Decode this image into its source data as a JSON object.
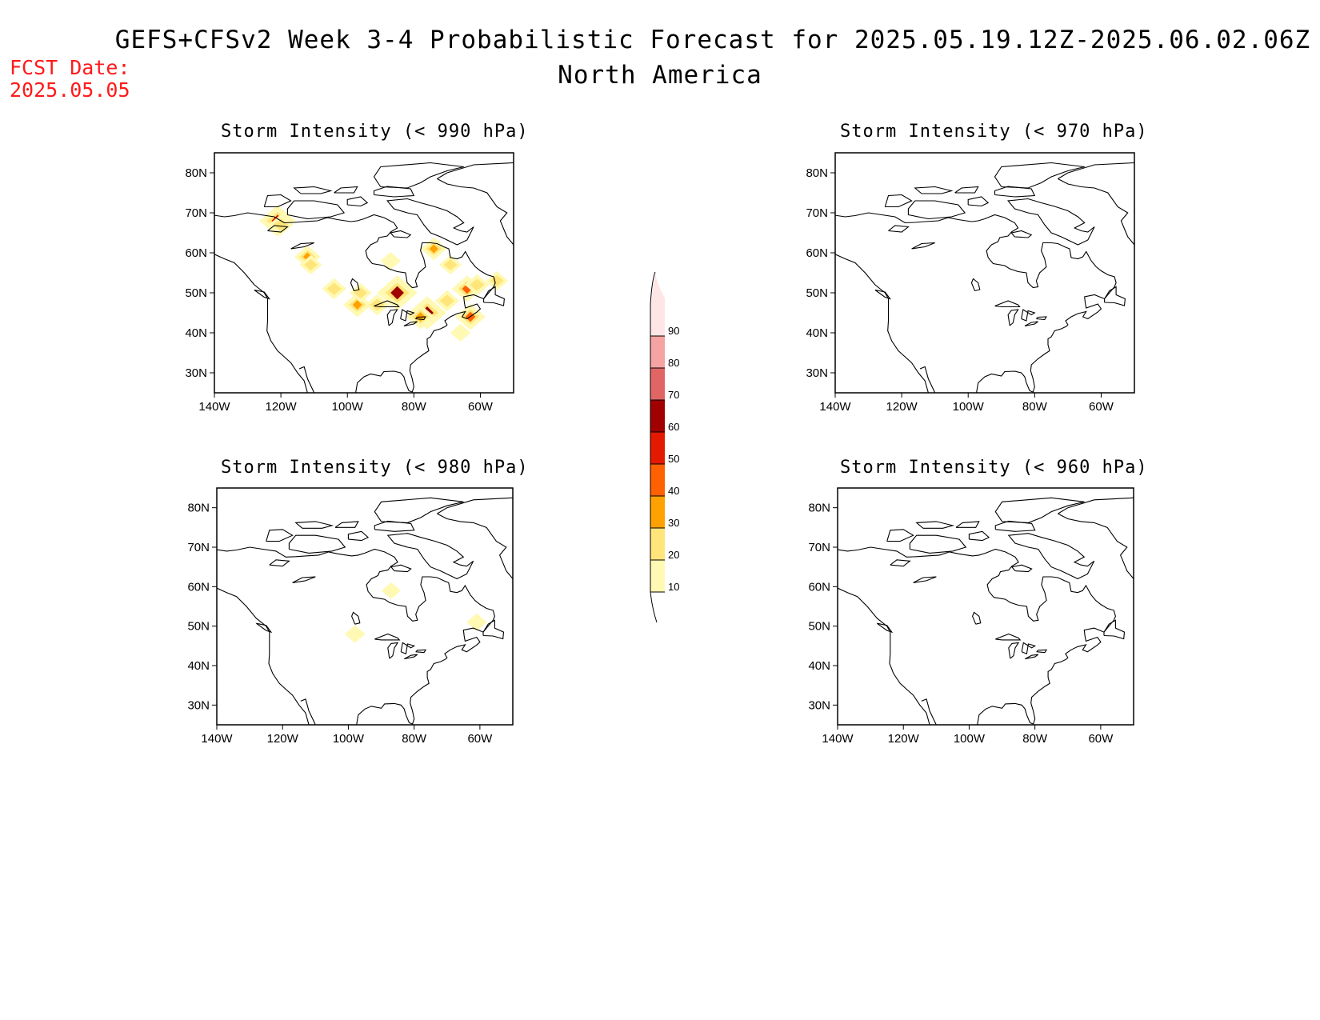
{
  "title": {
    "line1": "GEFS+CFSv2 Week 3-4 Probabilistic Forecast for 2025.05.19.12Z-2025.06.02.06Z",
    "line2": "North America"
  },
  "fcst": {
    "label": "FCST Date:",
    "date": "2025.05.05"
  },
  "axes": {
    "lon_ticks": [
      "140W",
      "120W",
      "100W",
      "80W",
      "60W"
    ],
    "lon_values": [
      -140,
      -120,
      -100,
      -80,
      -60
    ],
    "lat_ticks": [
      "30N",
      "40N",
      "50N",
      "60N",
      "70N",
      "80N"
    ],
    "lat_values": [
      30,
      40,
      50,
      60,
      70,
      80
    ],
    "lon_range": [
      -140,
      -50
    ],
    "lat_range": [
      25,
      85
    ]
  },
  "panels": [
    {
      "id": "p990",
      "title": "Storm Intensity (< 990 hPa)",
      "blobs": [
        {
          "lon": -121,
          "lat": 68,
          "v": 55
        },
        {
          "lon": -120,
          "lat": 67,
          "v": 25
        },
        {
          "lon": -112,
          "lat": 59,
          "v": 30
        },
        {
          "lon": -111,
          "lat": 57,
          "v": 20
        },
        {
          "lon": -104,
          "lat": 51,
          "v": 25
        },
        {
          "lon": -97,
          "lat": 47,
          "v": 35
        },
        {
          "lon": -96,
          "lat": 50,
          "v": 20
        },
        {
          "lon": -91,
          "lat": 47,
          "v": 25
        },
        {
          "lon": -85,
          "lat": 50,
          "v": 65
        },
        {
          "lon": -87,
          "lat": 58,
          "v": 15
        },
        {
          "lon": -74,
          "lat": 61,
          "v": 30
        },
        {
          "lon": -69,
          "lat": 57,
          "v": 20
        },
        {
          "lon": -76,
          "lat": 45,
          "v": 60
        },
        {
          "lon": -78,
          "lat": 44,
          "v": 35
        },
        {
          "lon": -70,
          "lat": 48,
          "v": 25
        },
        {
          "lon": -64,
          "lat": 51,
          "v": 40
        },
        {
          "lon": -61,
          "lat": 52,
          "v": 25
        },
        {
          "lon": -63,
          "lat": 44,
          "v": 40
        },
        {
          "lon": -55,
          "lat": 53,
          "v": 20
        },
        {
          "lon": -66,
          "lat": 40,
          "v": 15
        }
      ]
    },
    {
      "id": "p970",
      "title": "Storm Intensity (< 970 hPa)",
      "blobs": []
    },
    {
      "id": "p980",
      "title": "Storm Intensity (< 980 hPa)",
      "blobs": [
        {
          "lon": -98,
          "lat": 48,
          "v": 15
        },
        {
          "lon": -61,
          "lat": 51,
          "v": 15
        },
        {
          "lon": -87,
          "lat": 59,
          "v": 12
        }
      ]
    },
    {
      "id": "p960",
      "title": "Storm Intensity (< 960 hPa)",
      "blobs": []
    }
  ],
  "colorbar": {
    "labels": [
      "10",
      "20",
      "30",
      "40",
      "50",
      "60",
      "70",
      "80",
      "90"
    ],
    "colors": [
      "#fff9b3",
      "#ffe57a",
      "#ffa100",
      "#ff6000",
      "#e41a00",
      "#a00000",
      "#e06666",
      "#f5a3a3",
      "#ffe6e6"
    ]
  }
}
